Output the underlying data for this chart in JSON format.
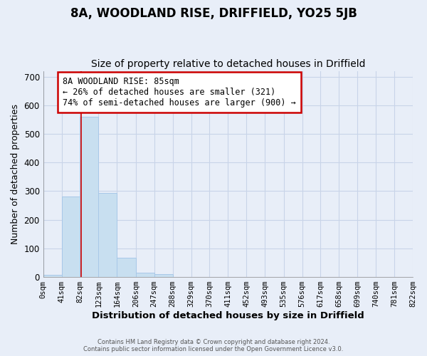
{
  "title": "8A, WOODLAND RISE, DRIFFIELD, YO25 5JB",
  "subtitle": "Size of property relative to detached houses in Driffield",
  "xlabel": "Distribution of detached houses by size in Driffield",
  "ylabel": "Number of detached properties",
  "bar_heights": [
    7,
    280,
    560,
    293,
    68,
    14,
    9,
    0,
    0,
    0,
    0,
    0,
    0,
    0,
    0,
    0,
    0,
    0,
    0,
    0
  ],
  "bin_edges": [
    0,
    41,
    82,
    123,
    164,
    206,
    247,
    288,
    329,
    370,
    411,
    452,
    493,
    535,
    576,
    617,
    658,
    699,
    740,
    781,
    822
  ],
  "tick_labels": [
    "0sqm",
    "41sqm",
    "82sqm",
    "123sqm",
    "164sqm",
    "206sqm",
    "247sqm",
    "288sqm",
    "329sqm",
    "370sqm",
    "411sqm",
    "452sqm",
    "493sqm",
    "535sqm",
    "576sqm",
    "617sqm",
    "658sqm",
    "699sqm",
    "740sqm",
    "781sqm",
    "822sqm"
  ],
  "bar_color": "#c8dff0",
  "bar_edge_color": "#a8c8e8",
  "property_line_x": 85,
  "property_line_color": "#cc0000",
  "annotation_text": "8A WOODLAND RISE: 85sqm\n← 26% of detached houses are smaller (321)\n74% of semi-detached houses are larger (900) →",
  "annotation_box_color": "#ffffff",
  "annotation_box_edge_color": "#cc0000",
  "ylim": [
    0,
    720
  ],
  "yticks": [
    0,
    100,
    200,
    300,
    400,
    500,
    600,
    700
  ],
  "grid_color": "#c8d4e8",
  "background_color": "#e8eef8",
  "plot_bg_color": "#e8eef8",
  "footer_line1": "Contains HM Land Registry data © Crown copyright and database right 2024.",
  "footer_line2": "Contains public sector information licensed under the Open Government Licence v3.0.",
  "title_fontsize": 12,
  "subtitle_fontsize": 10
}
